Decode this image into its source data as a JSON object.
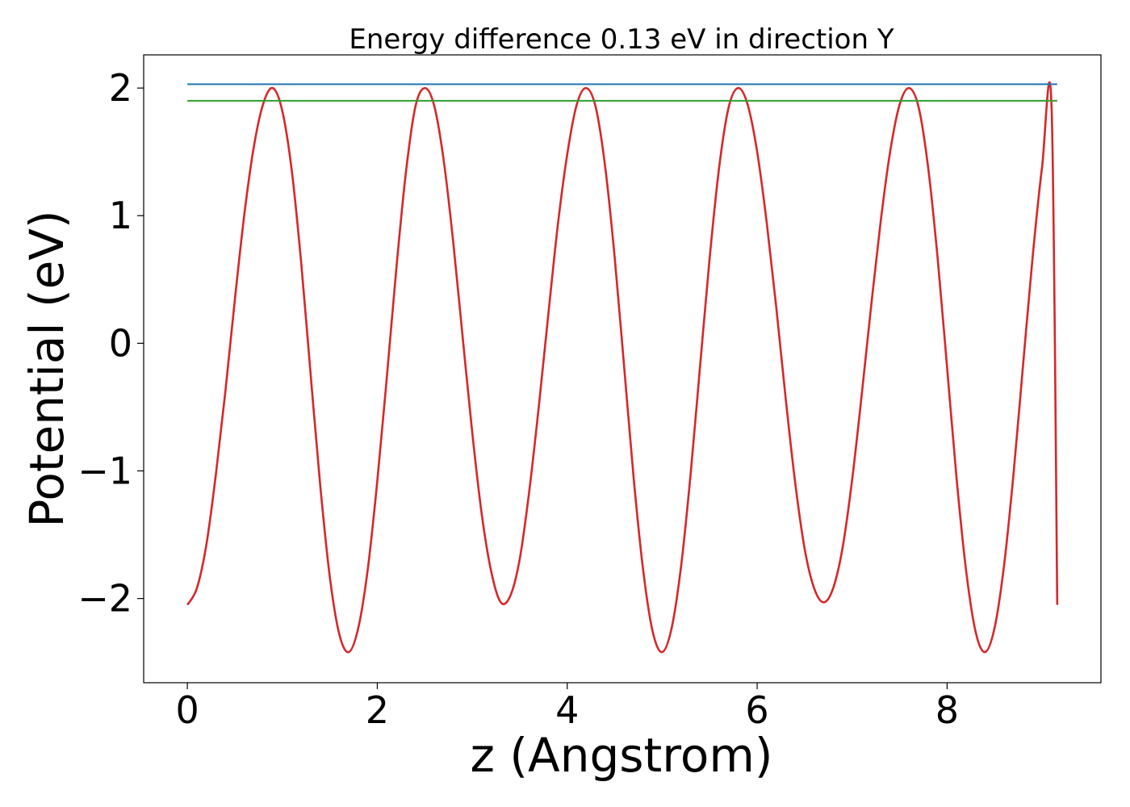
{
  "chart_data": {
    "type": "line",
    "title": "Energy difference 0.13 eV in direction Y",
    "xlabel": "z (Angstrom)",
    "ylabel": "Potential (eV)",
    "xlim": [
      -0.46,
      9.62
    ],
    "ylim": [
      -2.66,
      2.26
    ],
    "xticks": [
      0,
      2,
      4,
      6,
      8
    ],
    "xtick_labels": [
      "0",
      "2",
      "4",
      "6",
      "8"
    ],
    "yticks": [
      -2,
      -1,
      0,
      1,
      2
    ],
    "ytick_labels": [
      "−2",
      "−1",
      "0",
      "1",
      "2"
    ],
    "grid": false,
    "series": [
      {
        "color": "#d62728",
        "x": [
          0.0,
          0.1,
          0.2,
          0.3,
          0.4,
          0.5,
          0.6,
          0.7,
          0.8,
          0.9,
          1.0,
          1.1,
          1.2,
          1.3,
          1.4,
          1.5,
          1.6,
          1.7,
          1.8,
          1.9,
          2.0,
          2.1,
          2.2,
          2.3,
          2.4,
          2.5,
          2.6,
          2.7,
          2.8,
          2.9,
          3.0,
          3.1,
          3.2,
          3.3,
          3.4,
          3.5,
          3.6,
          3.7,
          3.8,
          3.9,
          4.0,
          4.1,
          4.2,
          4.3,
          4.4,
          4.5,
          4.6,
          4.7,
          4.8,
          4.9,
          5.0,
          5.1,
          5.2,
          5.3,
          5.4,
          5.5,
          5.6,
          5.7,
          5.8,
          5.9,
          6.0,
          6.1,
          6.2,
          6.3,
          6.4,
          6.5,
          6.6,
          6.7,
          6.8,
          6.9,
          7.0,
          7.1,
          7.2,
          7.3,
          7.4,
          7.5,
          7.6,
          7.7,
          7.8,
          7.9,
          8.0,
          8.1,
          8.2,
          8.3,
          8.4,
          8.5,
          8.6,
          8.7,
          8.8,
          8.9,
          9.0,
          9.1,
          9.16
        ],
        "y": [
          -2.05,
          -1.92,
          -1.58,
          -1.03,
          -0.38,
          0.34,
          1.01,
          1.54,
          1.88,
          2.0,
          1.82,
          1.35,
          0.62,
          -0.26,
          -1.12,
          -1.83,
          -2.28,
          -2.42,
          -2.23,
          -1.77,
          -1.08,
          -0.27,
          0.58,
          1.33,
          1.85,
          2.0,
          1.86,
          1.43,
          0.79,
          0.04,
          -0.7,
          -1.34,
          -1.79,
          -2.03,
          -1.98,
          -1.69,
          -1.16,
          -0.5,
          0.22,
          0.92,
          1.48,
          1.87,
          2.0,
          1.85,
          1.38,
          0.67,
          -0.19,
          -1.06,
          -1.78,
          -2.26,
          -2.42,
          -2.23,
          -1.74,
          -1.02,
          -0.17,
          0.67,
          1.38,
          1.85,
          2.0,
          1.87,
          1.5,
          0.95,
          0.29,
          -0.43,
          -1.09,
          -1.61,
          -1.92,
          -2.03,
          -1.92,
          -1.6,
          -1.07,
          -0.41,
          0.29,
          0.95,
          1.5,
          1.87,
          2.0,
          1.85,
          1.38,
          0.67,
          -0.19,
          -1.06,
          -1.78,
          -2.26,
          -2.42,
          -2.23,
          -1.74,
          -1.02,
          -0.17,
          0.67,
          1.38,
          1.85,
          -2.05
        ]
      },
      {
        "color": "#1f77b4",
        "x": [
          0.0,
          9.16
        ],
        "y": [
          2.03,
          2.03
        ]
      },
      {
        "color": "#2ca02c",
        "x": [
          0.0,
          9.16
        ],
        "y": [
          1.9,
          1.9
        ]
      }
    ]
  }
}
